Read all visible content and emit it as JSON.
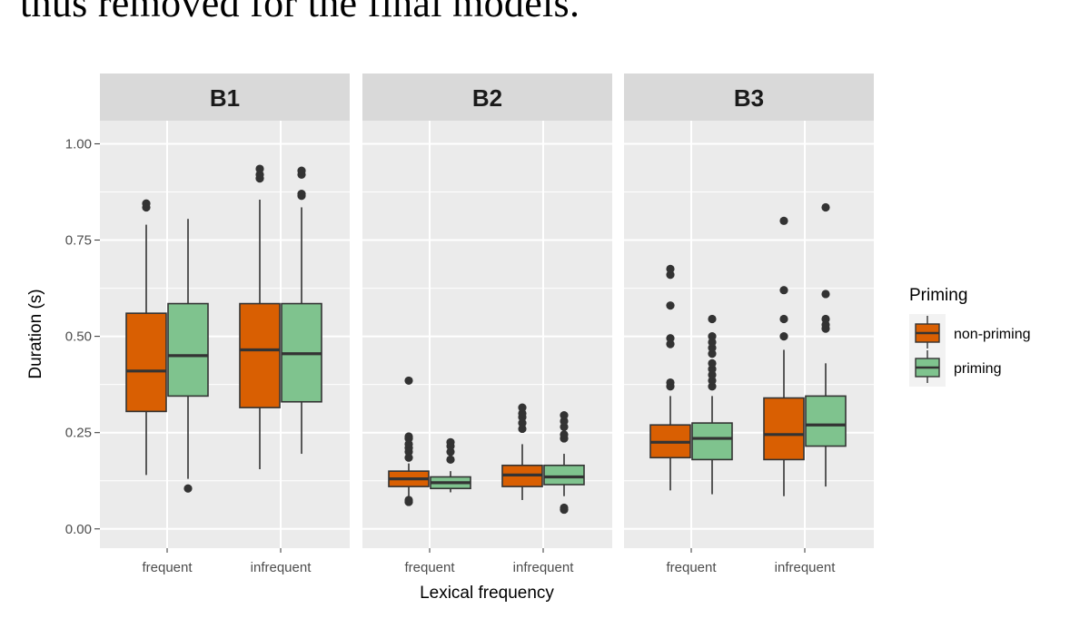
{
  "page": {
    "header_text": "thus removed for the final models."
  },
  "colors": {
    "non_priming": "#d95f02",
    "priming": "#7fc38e",
    "panel_bg": "#ebebeb",
    "strip_bg": "#d9d9d9",
    "grid": "#ffffff",
    "box_stroke": "#333333",
    "outlier": "#333333"
  },
  "chart_data": {
    "type": "boxplot",
    "facets": [
      "B1",
      "B2",
      "B3"
    ],
    "categories": [
      "frequent",
      "infrequent"
    ],
    "xlabel": "Lexical frequency",
    "ylabel": "Duration (s)",
    "ylim": [
      -0.05,
      1.06
    ],
    "yticks": [
      0.0,
      0.25,
      0.5,
      0.75,
      1.0
    ],
    "ytick_labels": [
      "0.00",
      "0.25",
      "0.50",
      "0.75",
      "1.00"
    ],
    "grid": true,
    "legend": {
      "title": "Priming",
      "position": "right",
      "entries": [
        {
          "key": "non_priming",
          "label": "non-priming"
        },
        {
          "key": "priming",
          "label": "priming"
        }
      ]
    },
    "boxes": [
      {
        "facet": "B1",
        "category": "frequent",
        "group": "non_priming",
        "whisker_low": 0.14,
        "q1": 0.305,
        "median": 0.41,
        "q3": 0.56,
        "whisker_high": 0.79,
        "outliers": [
          0.835,
          0.845
        ]
      },
      {
        "facet": "B1",
        "category": "frequent",
        "group": "priming",
        "whisker_low": 0.13,
        "q1": 0.345,
        "median": 0.45,
        "q3": 0.585,
        "whisker_high": 0.805,
        "outliers": [
          0.105
        ]
      },
      {
        "facet": "B1",
        "category": "infrequent",
        "group": "non_priming",
        "whisker_low": 0.155,
        "q1": 0.315,
        "median": 0.465,
        "q3": 0.585,
        "whisker_high": 0.855,
        "outliers": [
          0.91,
          0.92,
          0.935
        ]
      },
      {
        "facet": "B1",
        "category": "infrequent",
        "group": "priming",
        "whisker_low": 0.195,
        "q1": 0.33,
        "median": 0.455,
        "q3": 0.585,
        "whisker_high": 0.835,
        "outliers": [
          0.865,
          0.87,
          0.92,
          0.93
        ]
      },
      {
        "facet": "B2",
        "category": "frequent",
        "group": "non_priming",
        "whisker_low": 0.085,
        "q1": 0.11,
        "median": 0.13,
        "q3": 0.15,
        "whisker_high": 0.17,
        "outliers": [
          0.07,
          0.075,
          0.185,
          0.2,
          0.21,
          0.22,
          0.235,
          0.24,
          0.385
        ]
      },
      {
        "facet": "B2",
        "category": "frequent",
        "group": "priming",
        "whisker_low": 0.095,
        "q1": 0.105,
        "median": 0.12,
        "q3": 0.135,
        "whisker_high": 0.15,
        "outliers": [
          0.18,
          0.2,
          0.215,
          0.225
        ]
      },
      {
        "facet": "B2",
        "category": "infrequent",
        "group": "non_priming",
        "whisker_low": 0.075,
        "q1": 0.11,
        "median": 0.14,
        "q3": 0.165,
        "whisker_high": 0.22,
        "outliers": [
          0.26,
          0.275,
          0.29,
          0.3,
          0.315
        ]
      },
      {
        "facet": "B2",
        "category": "infrequent",
        "group": "priming",
        "whisker_low": 0.085,
        "q1": 0.115,
        "median": 0.135,
        "q3": 0.165,
        "whisker_high": 0.195,
        "outliers": [
          0.05,
          0.055,
          0.235,
          0.245,
          0.265,
          0.28,
          0.295
        ]
      },
      {
        "facet": "B3",
        "category": "frequent",
        "group": "non_priming",
        "whisker_low": 0.1,
        "q1": 0.185,
        "median": 0.225,
        "q3": 0.27,
        "whisker_high": 0.345,
        "outliers": [
          0.37,
          0.38,
          0.48,
          0.495,
          0.58,
          0.66,
          0.675
        ]
      },
      {
        "facet": "B3",
        "category": "frequent",
        "group": "priming",
        "whisker_low": 0.09,
        "q1": 0.18,
        "median": 0.235,
        "q3": 0.275,
        "whisker_high": 0.345,
        "outliers": [
          0.37,
          0.385,
          0.4,
          0.415,
          0.43,
          0.455,
          0.47,
          0.485,
          0.5,
          0.545
        ]
      },
      {
        "facet": "B3",
        "category": "infrequent",
        "group": "non_priming",
        "whisker_low": 0.085,
        "q1": 0.18,
        "median": 0.245,
        "q3": 0.34,
        "whisker_high": 0.465,
        "outliers": [
          0.5,
          0.545,
          0.62,
          0.8
        ]
      },
      {
        "facet": "B3",
        "category": "infrequent",
        "group": "priming",
        "whisker_low": 0.11,
        "q1": 0.215,
        "median": 0.27,
        "q3": 0.345,
        "whisker_high": 0.43,
        "outliers": [
          0.52,
          0.53,
          0.545,
          0.61,
          0.835
        ]
      }
    ]
  }
}
